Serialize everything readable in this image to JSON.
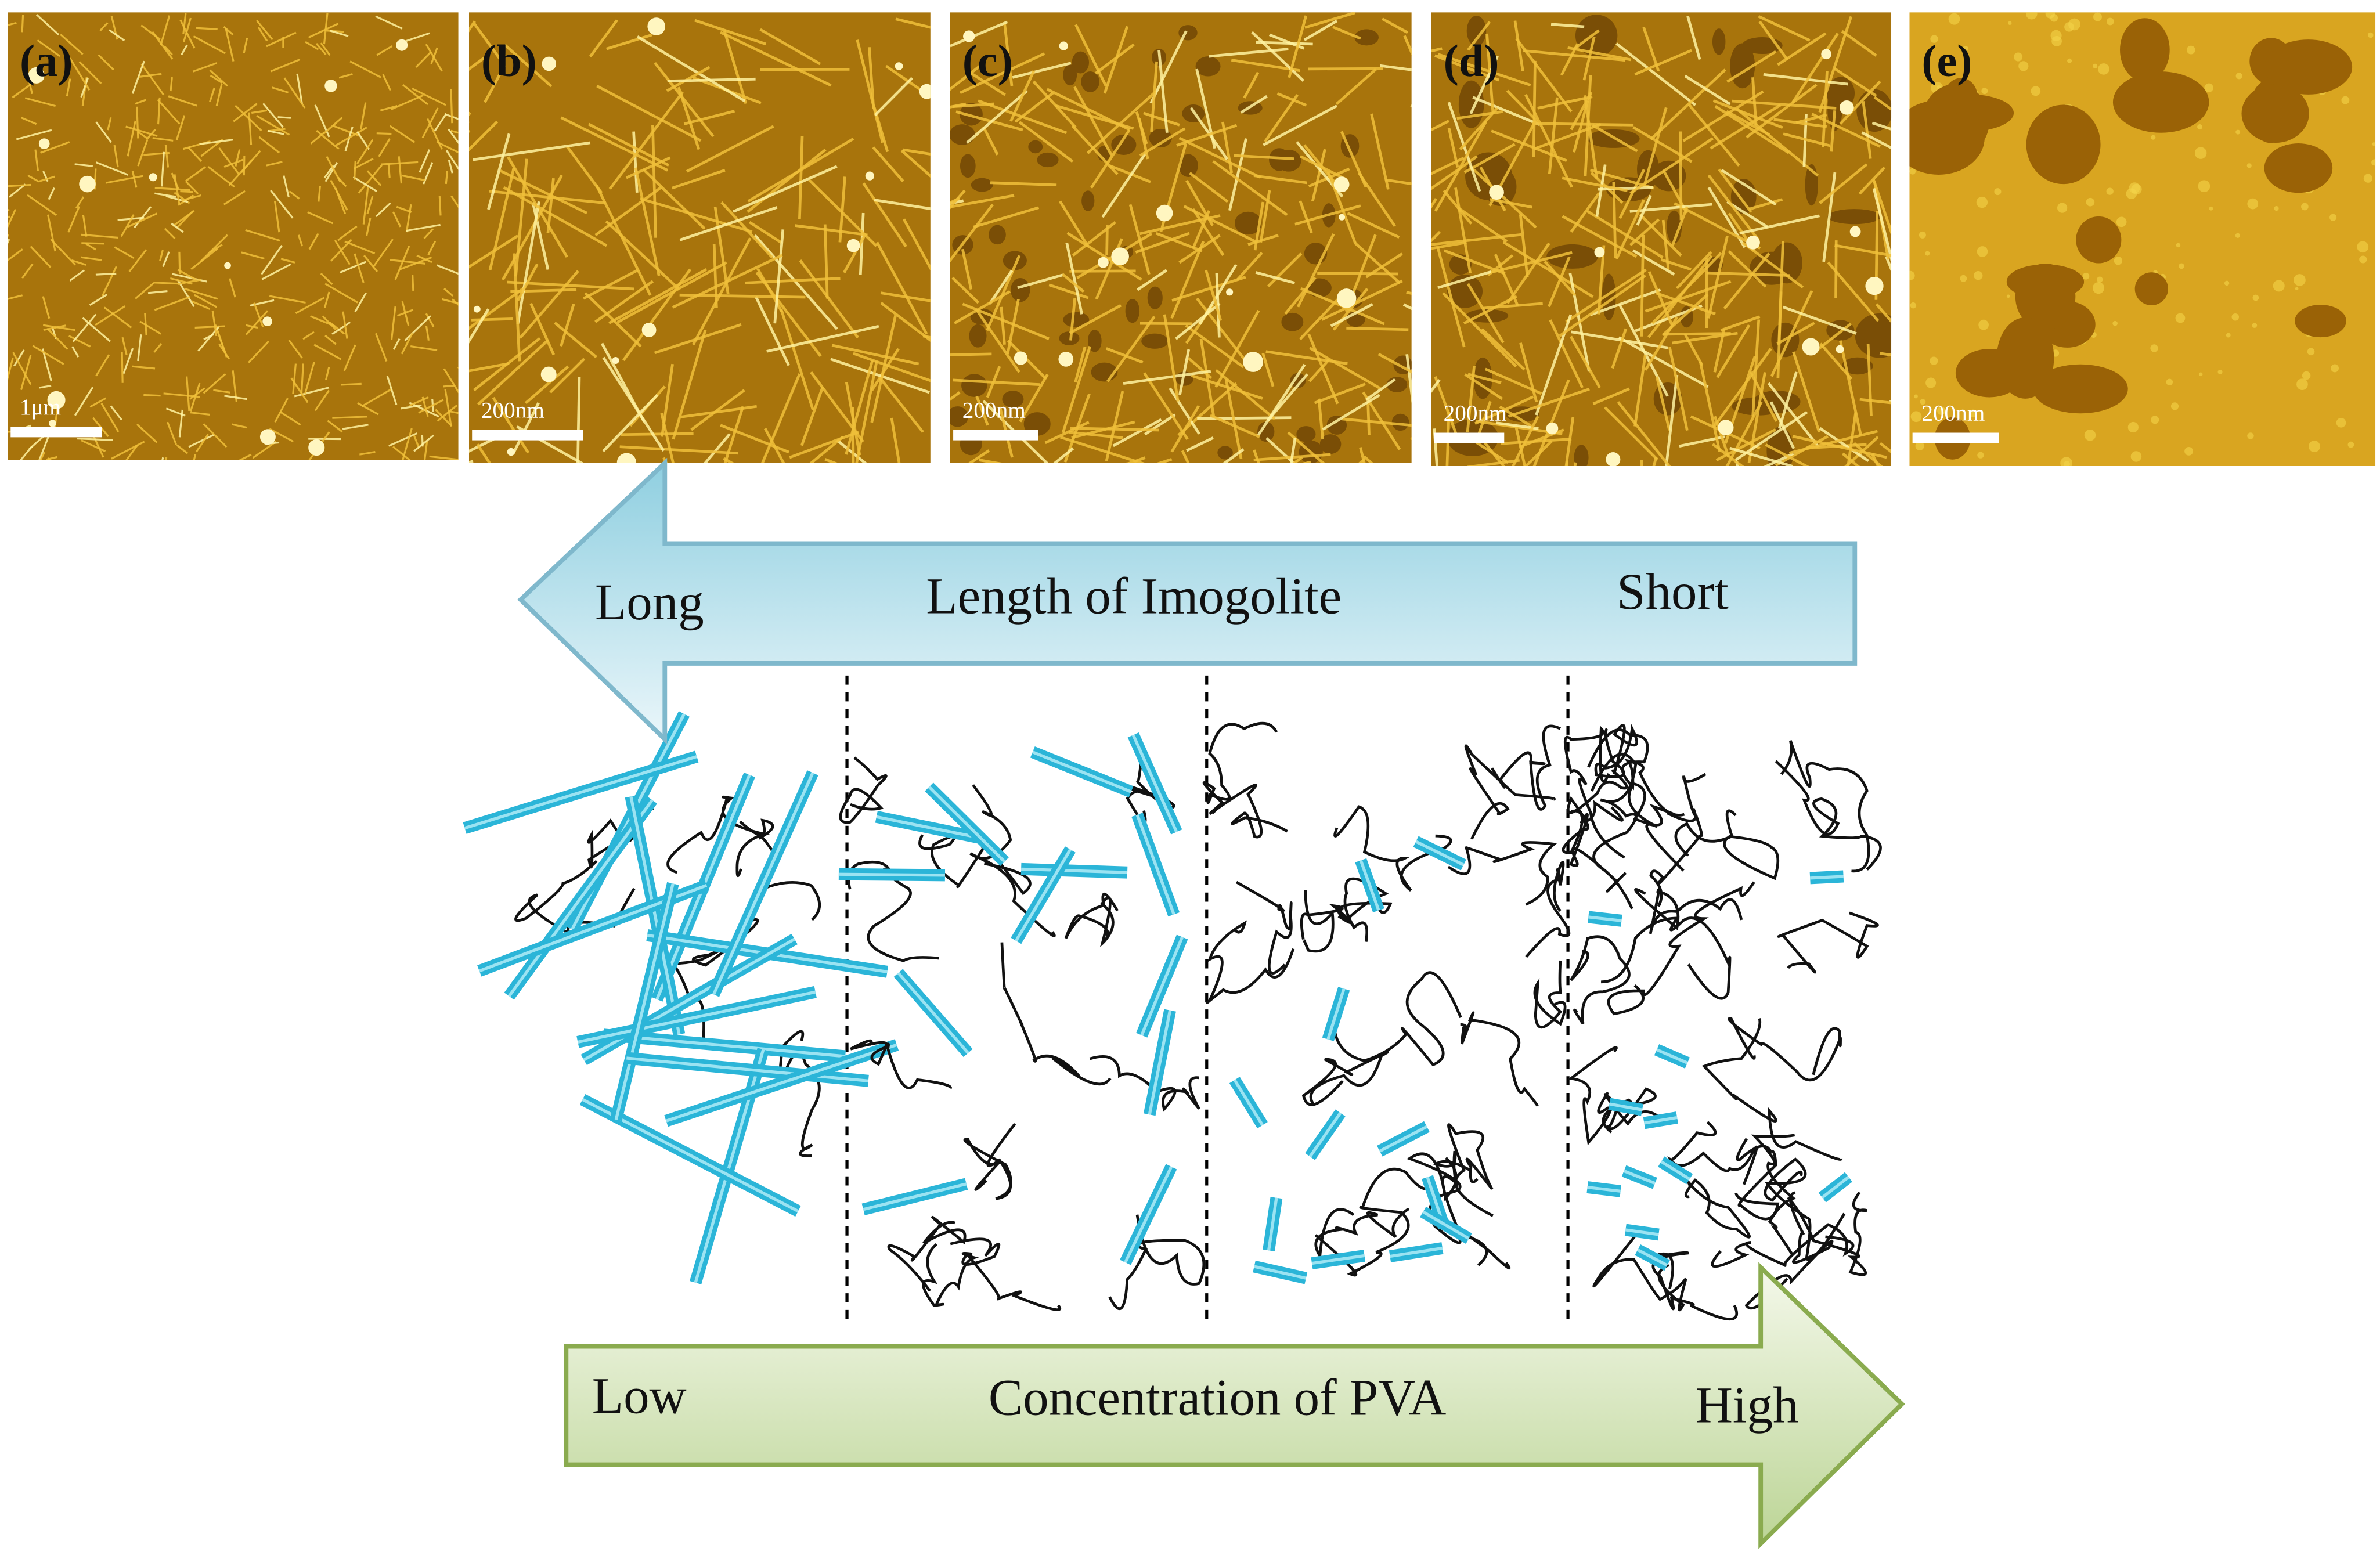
{
  "panels": [
    {
      "label": "(a)",
      "scale_bar": "1μm"
    },
    {
      "label": "(b)",
      "scale_bar": "200nm"
    },
    {
      "label": "(c)",
      "scale_bar": "200nm"
    },
    {
      "label": "(d)",
      "scale_bar": "200nm"
    },
    {
      "label": "(e)",
      "scale_bar": "200nm"
    }
  ],
  "top_arrow": {
    "left": "Long",
    "center": "Length of Imogolite",
    "right": "Short"
  },
  "bottom_arrow": {
    "left": "Low",
    "center": "Concentration of PVA",
    "right": "High"
  }
}
